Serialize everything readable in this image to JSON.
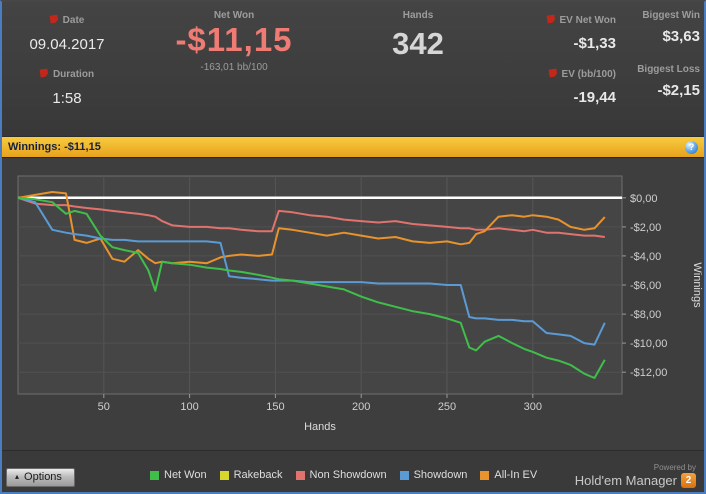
{
  "header": {
    "date": {
      "label": "Date",
      "value": "09.04.2017"
    },
    "duration": {
      "label": "Duration",
      "value": "1:58"
    },
    "net_won": {
      "label": "Net Won",
      "value": "-$11,15",
      "sub": "-163,01 bb/100"
    },
    "hands": {
      "label": "Hands",
      "value": "342"
    },
    "ev_net_won": {
      "label": "EV Net Won",
      "value": "-$1,33"
    },
    "biggest_win": {
      "label": "Biggest Win",
      "value": "$3,63"
    },
    "ev_bb100": {
      "label": "EV (bb/100)",
      "value": "-19,44"
    },
    "biggest_loss": {
      "label": "Biggest Loss",
      "value": "-$2,15"
    }
  },
  "winnings_bar": {
    "text": "Winnings: -$11,15",
    "help_icon": "?"
  },
  "colors": {
    "loss_text": "#ee7b74",
    "winnings_bar": "#f0b02e",
    "window_border": "#4a7ec0",
    "zero_line": "#ffffff"
  },
  "chart_data": {
    "type": "line",
    "title": "",
    "xlabel": "Hands",
    "ylabel": "Winnings",
    "xlim": [
      0,
      352
    ],
    "ylim": [
      -13.5,
      1.5
    ],
    "x_ticks": [
      50,
      100,
      150,
      200,
      250,
      300
    ],
    "y_ticks": [
      0,
      -2,
      -4,
      -6,
      -8,
      -10,
      -12
    ],
    "y_tick_labels": [
      "$0,00",
      "-$2,00",
      "-$4,00",
      "-$6,00",
      "-$8,00",
      "-$10,00",
      "-$12,00"
    ],
    "grid": true,
    "legend_position": "bottom",
    "x": [
      0,
      10,
      20,
      28,
      33,
      40,
      48,
      55,
      62,
      70,
      76,
      80,
      84,
      90,
      100,
      110,
      118,
      123,
      130,
      140,
      148,
      152,
      160,
      170,
      180,
      190,
      200,
      210,
      220,
      230,
      240,
      250,
      258,
      263,
      267,
      272,
      280,
      288,
      295,
      300,
      308,
      315,
      322,
      330,
      336,
      342
    ],
    "series": [
      {
        "name": "Net Won",
        "color": "#3fbf4a",
        "values": [
          0,
          -0.1,
          -0.3,
          -1.1,
          -0.9,
          -1.1,
          -2.6,
          -3.4,
          -3.6,
          -3.8,
          -5.0,
          -6.4,
          -4.4,
          -4.5,
          -4.6,
          -4.8,
          -4.9,
          -5.0,
          -5.1,
          -5.3,
          -5.5,
          -5.6,
          -5.7,
          -5.9,
          -6.1,
          -6.3,
          -6.8,
          -7.2,
          -7.5,
          -7.8,
          -8.0,
          -8.3,
          -8.6,
          -10.3,
          -10.5,
          -9.9,
          -9.5,
          -10.0,
          -10.4,
          -10.6,
          -11.0,
          -11.2,
          -11.5,
          -12.1,
          -12.4,
          -11.15
        ]
      },
      {
        "name": "Rakeback",
        "color": "#d6d62c",
        "values": [
          0,
          0,
          0,
          0,
          0,
          0,
          0,
          0,
          0,
          0,
          0,
          0,
          0,
          0,
          0,
          0,
          0,
          0,
          0,
          0,
          0,
          0,
          0,
          0,
          0,
          0,
          0,
          0,
          0,
          0,
          0,
          0,
          0,
          0,
          0,
          0,
          0,
          0,
          0,
          0,
          0,
          0,
          0,
          0,
          0,
          0
        ]
      },
      {
        "name": "Non Showdown",
        "color": "#e0736d",
        "values": [
          0,
          -0.4,
          -0.5,
          -0.5,
          -0.6,
          -0.7,
          -0.8,
          -0.9,
          -1.0,
          -1.1,
          -1.2,
          -1.3,
          -1.6,
          -1.9,
          -2.0,
          -2.0,
          -2.1,
          -2.1,
          -2.2,
          -2.3,
          -2.3,
          -0.9,
          -1.0,
          -1.2,
          -1.3,
          -1.5,
          -1.6,
          -1.7,
          -1.6,
          -1.8,
          -1.9,
          -2.0,
          -2.1,
          -2.1,
          -2.2,
          -2.2,
          -2.1,
          -2.2,
          -2.3,
          -2.2,
          -2.4,
          -2.4,
          -2.5,
          -2.6,
          -2.6,
          -2.7
        ]
      },
      {
        "name": "Showdown",
        "color": "#5b9bd5",
        "values": [
          0,
          -0.3,
          -2.2,
          -2.4,
          -2.5,
          -2.6,
          -2.8,
          -2.9,
          -2.9,
          -3.0,
          -3.0,
          -3.0,
          -3.0,
          -3.0,
          -3.0,
          -3.0,
          -3.1,
          -5.4,
          -5.5,
          -5.6,
          -5.7,
          -5.7,
          -5.7,
          -5.8,
          -5.8,
          -5.8,
          -5.8,
          -5.9,
          -5.9,
          -5.9,
          -5.9,
          -6.0,
          -6.0,
          -8.2,
          -8.3,
          -8.3,
          -8.4,
          -8.4,
          -8.5,
          -8.5,
          -9.3,
          -9.4,
          -9.5,
          -10.0,
          -10.1,
          -8.6
        ]
      },
      {
        "name": "All-In EV",
        "color": "#e8932c",
        "values": [
          0,
          0.2,
          0.4,
          0.3,
          -2.9,
          -3.1,
          -2.8,
          -4.2,
          -4.4,
          -3.6,
          -4.2,
          -4.5,
          -4.4,
          -4.5,
          -4.4,
          -4.5,
          -4.1,
          -4.0,
          -3.9,
          -4.0,
          -3.9,
          -2.1,
          -2.2,
          -2.4,
          -2.6,
          -2.4,
          -2.6,
          -2.8,
          -2.7,
          -3.0,
          -3.1,
          -3.0,
          -3.2,
          -3.1,
          -2.5,
          -2.3,
          -1.3,
          -1.2,
          -1.3,
          -1.2,
          -1.3,
          -1.5,
          -2.0,
          -2.2,
          -2.1,
          -1.33
        ]
      }
    ]
  },
  "footer": {
    "options_button": "Options",
    "options_arrow": "▴",
    "powered_by": "Powered by",
    "brand": "Hold'em Manager",
    "brand_badge": "2"
  }
}
